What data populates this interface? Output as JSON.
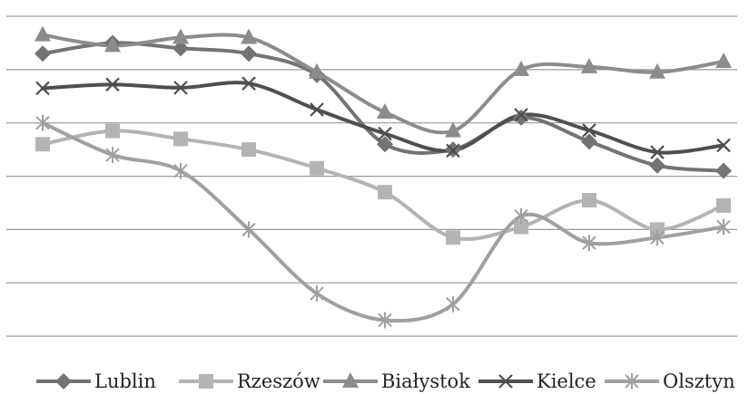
{
  "chart_data": {
    "type": "line",
    "title": "",
    "xlabel": "",
    "ylabel": "",
    "grid": true,
    "legend_position": "bottom",
    "ylim": [
      0,
      7
    ],
    "x": [
      1,
      2,
      3,
      4,
      5,
      6,
      7,
      8,
      9,
      10,
      11,
      12
    ],
    "series": [
      {
        "name": "Lublin",
        "marker": "diamond",
        "color": "#737373",
        "values": [
          6.3,
          6.5,
          6.4,
          6.3,
          5.9,
          4.6,
          4.5,
          5.1,
          4.65,
          4.2,
          4.1,
          null
        ]
      },
      {
        "name": "Rzeszów",
        "marker": "square",
        "color": "#b4b4b4",
        "values": [
          4.6,
          4.85,
          4.7,
          4.5,
          4.15,
          3.7,
          2.85,
          3.05,
          3.55,
          3.0,
          3.45,
          null
        ]
      },
      {
        "name": "Białystok",
        "marker": "triangle",
        "color": "#8c8c8c",
        "values": [
          6.65,
          6.45,
          6.6,
          6.6,
          5.95,
          5.2,
          4.85,
          6.0,
          6.05,
          5.95,
          6.15,
          null
        ]
      },
      {
        "name": "Kielce",
        "marker": "x",
        "color": "#4f4f4f",
        "values": [
          5.65,
          5.72,
          5.66,
          5.74,
          5.25,
          4.8,
          4.48,
          5.15,
          4.86,
          4.45,
          4.58,
          null
        ]
      },
      {
        "name": "Olsztyn",
        "marker": "star",
        "color": "#a0a0a0",
        "values": [
          5.0,
          4.4,
          4.1,
          3.0,
          1.8,
          1.3,
          1.6,
          3.25,
          2.75,
          2.85,
          3.05,
          null
        ]
      }
    ]
  }
}
